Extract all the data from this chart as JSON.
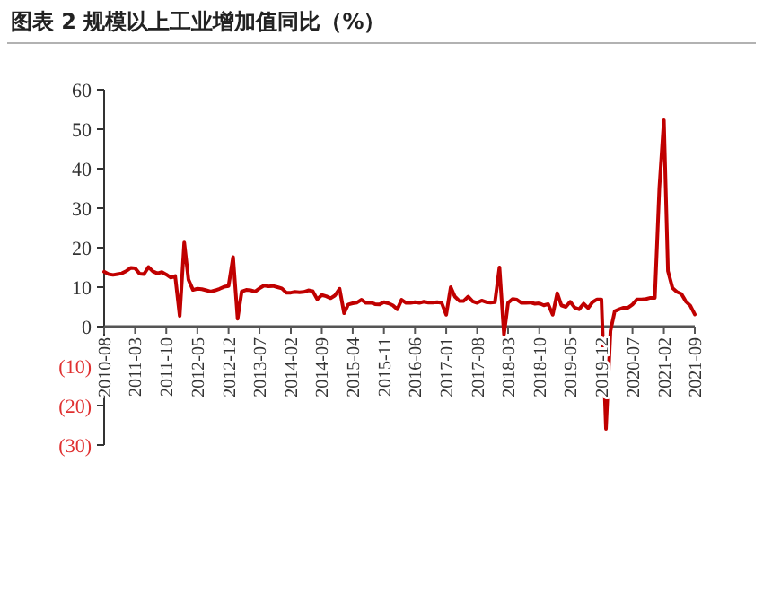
{
  "chart_data": {
    "type": "line",
    "title": "图表 2   规模以上工业增加值同比（%）",
    "x": [
      "2010-08",
      "2010-09",
      "2010-10",
      "2010-11",
      "2010-12",
      "2011-01",
      "2011-02",
      "2011-03",
      "2011-04",
      "2011-05",
      "2011-06",
      "2011-07",
      "2011-08",
      "2011-09",
      "2011-10",
      "2011-11",
      "2011-12",
      "2012-01",
      "2012-02",
      "2012-03",
      "2012-04",
      "2012-05",
      "2012-06",
      "2012-07",
      "2012-08",
      "2012-09",
      "2012-10",
      "2012-11",
      "2012-12",
      "2013-01",
      "2013-02",
      "2013-03",
      "2013-04",
      "2013-05",
      "2013-06",
      "2013-07",
      "2013-08",
      "2013-09",
      "2013-10",
      "2013-11",
      "2013-12",
      "2014-01",
      "2014-02",
      "2014-03",
      "2014-04",
      "2014-05",
      "2014-06",
      "2014-07",
      "2014-08",
      "2014-09",
      "2014-10",
      "2014-11",
      "2014-12",
      "2015-01",
      "2015-02",
      "2015-03",
      "2015-04",
      "2015-05",
      "2015-06",
      "2015-07",
      "2015-08",
      "2015-09",
      "2015-10",
      "2015-11",
      "2015-12",
      "2016-01",
      "2016-02",
      "2016-03",
      "2016-04",
      "2016-05",
      "2016-06",
      "2016-07",
      "2016-08",
      "2016-09",
      "2016-10",
      "2016-11",
      "2016-12",
      "2017-01",
      "2017-02",
      "2017-03",
      "2017-04",
      "2017-05",
      "2017-06",
      "2017-07",
      "2017-08",
      "2017-09",
      "2017-10",
      "2017-11",
      "2017-12",
      "2018-01",
      "2018-02",
      "2018-03",
      "2018-04",
      "2018-05",
      "2018-06",
      "2018-07",
      "2018-08",
      "2018-09",
      "2018-10",
      "2018-11",
      "2018-12",
      "2019-01",
      "2019-02",
      "2019-03",
      "2019-04",
      "2019-05",
      "2019-06",
      "2019-07",
      "2019-08",
      "2019-09",
      "2019-10",
      "2019-11",
      "2019-12",
      "2020-01",
      "2020-02",
      "2020-03",
      "2020-04",
      "2020-05",
      "2020-06",
      "2020-07",
      "2020-08",
      "2020-09",
      "2020-10",
      "2020-11",
      "2020-12",
      "2021-01",
      "2021-02",
      "2021-03",
      "2021-04",
      "2021-05",
      "2021-06",
      "2021-07",
      "2021-08",
      "2021-09"
    ],
    "series": [
      {
        "color": "#c00000",
        "values": [
          13.9,
          13.3,
          13.1,
          13.3,
          13.5,
          14.1,
          14.9,
          14.8,
          13.4,
          13.3,
          15.1,
          14.0,
          13.5,
          13.8,
          13.2,
          12.4,
          12.8,
          2.7,
          21.3,
          11.9,
          9.3,
          9.6,
          9.5,
          9.2,
          8.9,
          9.2,
          9.6,
          10.1,
          10.3,
          17.6,
          2.0,
          8.9,
          9.3,
          9.2,
          8.9,
          9.7,
          10.4,
          10.2,
          10.3,
          10.0,
          9.7,
          8.6,
          8.6,
          8.8,
          8.7,
          8.8,
          9.2,
          9.0,
          6.9,
          8.0,
          7.7,
          7.2,
          7.9,
          9.6,
          3.4,
          5.6,
          5.9,
          6.1,
          6.8,
          6.0,
          6.1,
          5.7,
          5.6,
          6.2,
          5.9,
          5.4,
          4.4,
          6.8,
          6.0,
          6.0,
          6.2,
          6.0,
          6.3,
          6.1,
          6.1,
          6.2,
          6.0,
          3.0,
          10.0,
          7.6,
          6.5,
          6.5,
          7.6,
          6.4,
          6.0,
          6.6,
          6.2,
          6.1,
          6.2,
          15.0,
          -2.0,
          6.0,
          7.0,
          6.8,
          6.0,
          6.0,
          6.1,
          5.8,
          5.9,
          5.4,
          5.7,
          3.0,
          8.5,
          5.4,
          5.0,
          6.3,
          4.8,
          4.4,
          5.8,
          4.7,
          6.2,
          6.9,
          6.9,
          -25.9,
          -1.1,
          3.9,
          4.4,
          4.8,
          4.8,
          5.6,
          6.9,
          6.9,
          7.0,
          7.3,
          7.3,
          35.1,
          52.3,
          14.1,
          9.8,
          8.8,
          8.3,
          6.4,
          5.3,
          3.1
        ]
      }
    ],
    "xlim": [
      "2010-08",
      "2021-09"
    ],
    "xticks": [
      "2010-08",
      "2011-03",
      "2011-10",
      "2012-05",
      "2012-12",
      "2013-07",
      "2014-02",
      "2014-09",
      "2015-04",
      "2015-11",
      "2016-06",
      "2017-01",
      "2017-08",
      "2018-03",
      "2018-10",
      "2019-05",
      "2019-12",
      "2020-07",
      "2021-02",
      "2021-09"
    ],
    "ylim": [
      -30,
      60
    ],
    "yticks": [
      60,
      50,
      40,
      30,
      20,
      10,
      0,
      {
        "value": -10,
        "label": "(10)"
      },
      {
        "value": -20,
        "label": "(20)"
      },
      {
        "value": -30,
        "label": "(30)"
      }
    ],
    "grid": false,
    "marker": "none",
    "line_style": "solid"
  }
}
